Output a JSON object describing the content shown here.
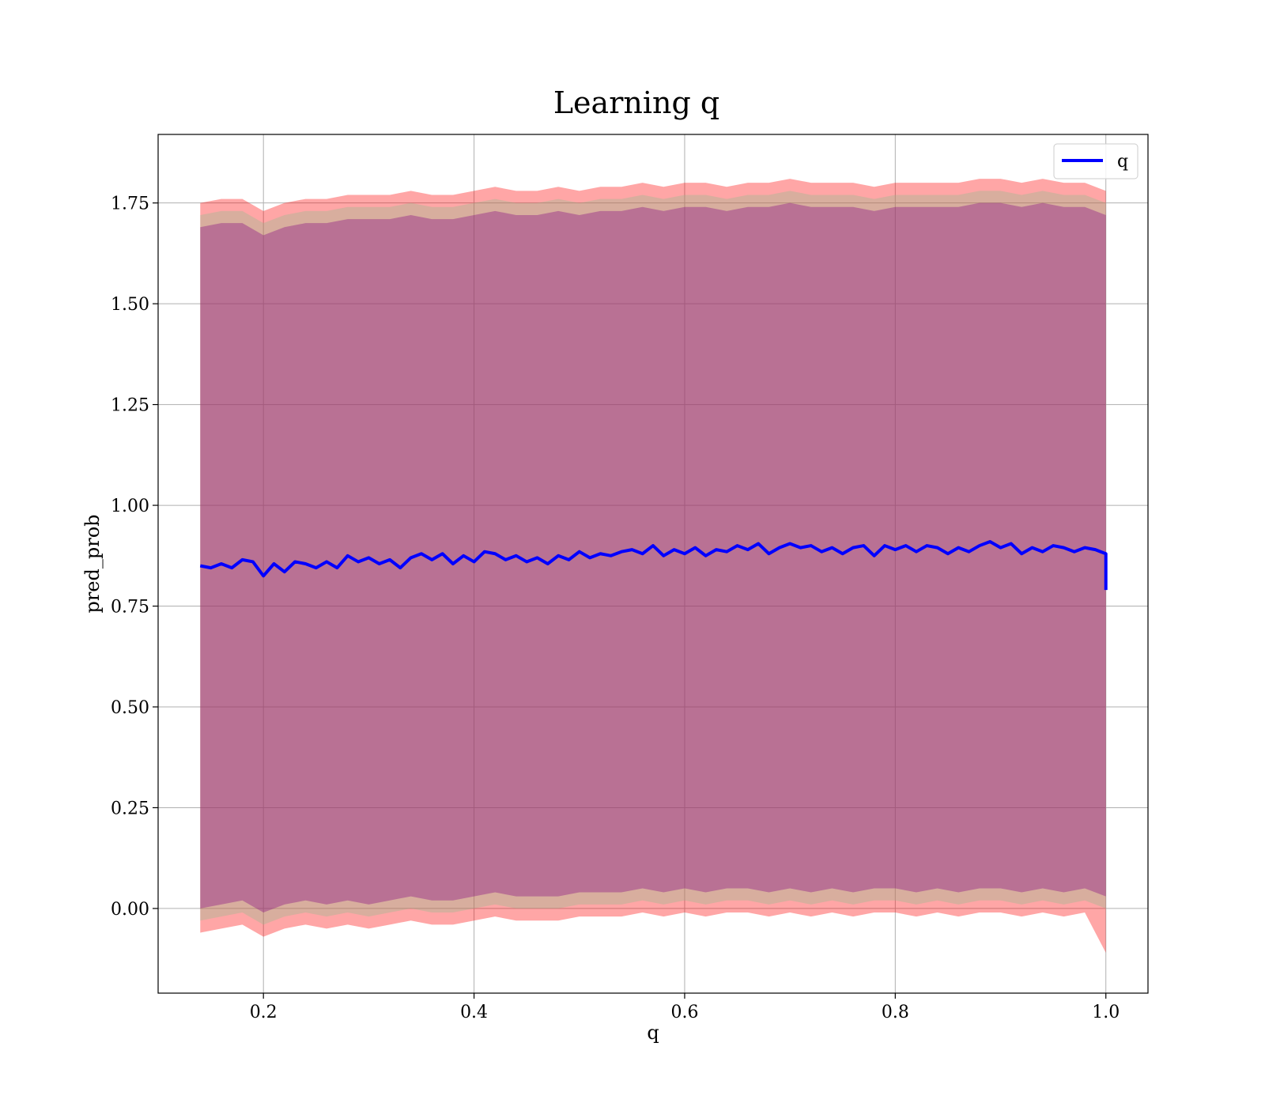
{
  "chart_data": {
    "type": "line",
    "title": "Learning q",
    "xlabel": "q",
    "ylabel": "pred_prob",
    "xlim": [
      0.1,
      1.04
    ],
    "ylim": [
      -0.21,
      1.92
    ],
    "xticks": [
      {
        "value": 0.2,
        "label": "0.2"
      },
      {
        "value": 0.4,
        "label": "0.4"
      },
      {
        "value": 0.6,
        "label": "0.6"
      },
      {
        "value": 0.8,
        "label": "0.8"
      },
      {
        "value": 1.0,
        "label": "1.0"
      }
    ],
    "yticks": [
      {
        "value": 0.0,
        "label": "0.00"
      },
      {
        "value": 0.25,
        "label": "0.25"
      },
      {
        "value": 0.5,
        "label": "0.50"
      },
      {
        "value": 0.75,
        "label": "0.75"
      },
      {
        "value": 1.0,
        "label": "1.00"
      },
      {
        "value": 1.25,
        "label": "1.25"
      },
      {
        "value": 1.5,
        "label": "1.50"
      },
      {
        "value": 1.75,
        "label": "1.75"
      }
    ],
    "grid": true,
    "legend": {
      "position": "top-right"
    },
    "series": [
      {
        "name": "q",
        "color": "#0000ff",
        "x": [
          0.14,
          0.15,
          0.16,
          0.17,
          0.18,
          0.19,
          0.2,
          0.21,
          0.22,
          0.23,
          0.24,
          0.25,
          0.26,
          0.27,
          0.28,
          0.29,
          0.3,
          0.31,
          0.32,
          0.33,
          0.34,
          0.35,
          0.36,
          0.37,
          0.38,
          0.39,
          0.4,
          0.41,
          0.42,
          0.43,
          0.44,
          0.45,
          0.46,
          0.47,
          0.48,
          0.49,
          0.5,
          0.51,
          0.52,
          0.53,
          0.54,
          0.55,
          0.56,
          0.57,
          0.58,
          0.59,
          0.6,
          0.61,
          0.62,
          0.63,
          0.64,
          0.65,
          0.66,
          0.67,
          0.68,
          0.69,
          0.7,
          0.71,
          0.72,
          0.73,
          0.74,
          0.75,
          0.76,
          0.77,
          0.78,
          0.79,
          0.8,
          0.81,
          0.82,
          0.83,
          0.84,
          0.85,
          0.86,
          0.87,
          0.88,
          0.89,
          0.9,
          0.91,
          0.92,
          0.93,
          0.94,
          0.95,
          0.96,
          0.97,
          0.98,
          0.99,
          0.995,
          1.0,
          1.0
        ],
        "y": [
          0.85,
          0.845,
          0.855,
          0.845,
          0.865,
          0.86,
          0.825,
          0.855,
          0.835,
          0.86,
          0.855,
          0.845,
          0.86,
          0.845,
          0.875,
          0.86,
          0.87,
          0.855,
          0.865,
          0.845,
          0.87,
          0.88,
          0.865,
          0.88,
          0.855,
          0.875,
          0.86,
          0.885,
          0.88,
          0.865,
          0.875,
          0.86,
          0.87,
          0.855,
          0.875,
          0.865,
          0.885,
          0.87,
          0.88,
          0.875,
          0.885,
          0.89,
          0.88,
          0.9,
          0.875,
          0.89,
          0.88,
          0.895,
          0.875,
          0.89,
          0.885,
          0.9,
          0.89,
          0.905,
          0.88,
          0.895,
          0.905,
          0.895,
          0.9,
          0.885,
          0.895,
          0.88,
          0.895,
          0.9,
          0.875,
          0.9,
          0.89,
          0.9,
          0.885,
          0.9,
          0.895,
          0.88,
          0.895,
          0.885,
          0.9,
          0.91,
          0.895,
          0.905,
          0.88,
          0.895,
          0.885,
          0.9,
          0.895,
          0.885,
          0.895,
          0.89,
          0.885,
          0.88,
          0.79
        ]
      }
    ],
    "bands": [
      {
        "color": "#ff0000",
        "opacity": 0.35,
        "x": [
          0.14,
          0.16,
          0.18,
          0.2,
          0.22,
          0.24,
          0.26,
          0.28,
          0.3,
          0.32,
          0.34,
          0.36,
          0.38,
          0.4,
          0.42,
          0.44,
          0.46,
          0.48,
          0.5,
          0.52,
          0.54,
          0.56,
          0.58,
          0.6,
          0.62,
          0.64,
          0.66,
          0.68,
          0.7,
          0.72,
          0.74,
          0.76,
          0.78,
          0.8,
          0.82,
          0.84,
          0.86,
          0.88,
          0.9,
          0.92,
          0.94,
          0.96,
          0.98,
          1.0
        ],
        "lower": [
          -0.06,
          -0.05,
          -0.04,
          -0.07,
          -0.05,
          -0.04,
          -0.05,
          -0.04,
          -0.05,
          -0.04,
          -0.03,
          -0.04,
          -0.04,
          -0.03,
          -0.02,
          -0.03,
          -0.03,
          -0.03,
          -0.02,
          -0.02,
          -0.02,
          -0.01,
          -0.02,
          -0.01,
          -0.02,
          -0.01,
          -0.01,
          -0.02,
          -0.01,
          -0.02,
          -0.01,
          -0.02,
          -0.01,
          -0.01,
          -0.02,
          -0.01,
          -0.02,
          -0.01,
          -0.01,
          -0.02,
          -0.01,
          -0.02,
          -0.01,
          -0.11
        ],
        "upper": [
          1.75,
          1.76,
          1.76,
          1.73,
          1.75,
          1.76,
          1.76,
          1.77,
          1.77,
          1.77,
          1.78,
          1.77,
          1.77,
          1.78,
          1.79,
          1.78,
          1.78,
          1.79,
          1.78,
          1.79,
          1.79,
          1.8,
          1.79,
          1.8,
          1.8,
          1.79,
          1.8,
          1.8,
          1.81,
          1.8,
          1.8,
          1.8,
          1.79,
          1.8,
          1.8,
          1.8,
          1.8,
          1.81,
          1.81,
          1.8,
          1.81,
          1.8,
          1.8,
          1.78
        ]
      },
      {
        "color": "#8fbc8f",
        "opacity": 0.35,
        "x": [
          0.14,
          0.16,
          0.18,
          0.2,
          0.22,
          0.24,
          0.26,
          0.28,
          0.3,
          0.32,
          0.34,
          0.36,
          0.38,
          0.4,
          0.42,
          0.44,
          0.46,
          0.48,
          0.5,
          0.52,
          0.54,
          0.56,
          0.58,
          0.6,
          0.62,
          0.64,
          0.66,
          0.68,
          0.7,
          0.72,
          0.74,
          0.76,
          0.78,
          0.8,
          0.82,
          0.84,
          0.86,
          0.88,
          0.9,
          0.92,
          0.94,
          0.96,
          0.98,
          1.0
        ],
        "lower": [
          -0.03,
          -0.02,
          -0.01,
          -0.04,
          -0.02,
          -0.01,
          -0.02,
          -0.01,
          -0.02,
          -0.01,
          0.0,
          -0.01,
          -0.01,
          0.0,
          0.01,
          0.0,
          0.0,
          0.0,
          0.01,
          0.01,
          0.01,
          0.02,
          0.01,
          0.02,
          0.01,
          0.02,
          0.02,
          0.01,
          0.02,
          0.01,
          0.02,
          0.01,
          0.02,
          0.02,
          0.01,
          0.02,
          0.01,
          0.02,
          0.02,
          0.01,
          0.02,
          0.01,
          0.02,
          0.0
        ],
        "upper": [
          1.72,
          1.73,
          1.73,
          1.7,
          1.72,
          1.73,
          1.73,
          1.74,
          1.74,
          1.74,
          1.75,
          1.74,
          1.74,
          1.75,
          1.76,
          1.75,
          1.75,
          1.76,
          1.75,
          1.76,
          1.76,
          1.77,
          1.76,
          1.77,
          1.77,
          1.76,
          1.77,
          1.77,
          1.78,
          1.77,
          1.77,
          1.77,
          1.76,
          1.77,
          1.77,
          1.77,
          1.77,
          1.78,
          1.78,
          1.77,
          1.78,
          1.77,
          1.77,
          1.75
        ]
      },
      {
        "color": "#800080",
        "opacity": 0.35,
        "x": [
          0.14,
          0.16,
          0.18,
          0.2,
          0.22,
          0.24,
          0.26,
          0.28,
          0.3,
          0.32,
          0.34,
          0.36,
          0.38,
          0.4,
          0.42,
          0.44,
          0.46,
          0.48,
          0.5,
          0.52,
          0.54,
          0.56,
          0.58,
          0.6,
          0.62,
          0.64,
          0.66,
          0.68,
          0.7,
          0.72,
          0.74,
          0.76,
          0.78,
          0.8,
          0.82,
          0.84,
          0.86,
          0.88,
          0.9,
          0.92,
          0.94,
          0.96,
          0.98,
          1.0
        ],
        "lower": [
          0.0,
          0.01,
          0.02,
          -0.01,
          0.01,
          0.02,
          0.01,
          0.02,
          0.01,
          0.02,
          0.03,
          0.02,
          0.02,
          0.03,
          0.04,
          0.03,
          0.03,
          0.03,
          0.04,
          0.04,
          0.04,
          0.05,
          0.04,
          0.05,
          0.04,
          0.05,
          0.05,
          0.04,
          0.05,
          0.04,
          0.05,
          0.04,
          0.05,
          0.05,
          0.04,
          0.05,
          0.04,
          0.05,
          0.05,
          0.04,
          0.05,
          0.04,
          0.05,
          0.03
        ],
        "upper": [
          1.69,
          1.7,
          1.7,
          1.67,
          1.69,
          1.7,
          1.7,
          1.71,
          1.71,
          1.71,
          1.72,
          1.71,
          1.71,
          1.72,
          1.73,
          1.72,
          1.72,
          1.73,
          1.72,
          1.73,
          1.73,
          1.74,
          1.73,
          1.74,
          1.74,
          1.73,
          1.74,
          1.74,
          1.75,
          1.74,
          1.74,
          1.74,
          1.73,
          1.74,
          1.74,
          1.74,
          1.74,
          1.75,
          1.75,
          1.74,
          1.75,
          1.74,
          1.74,
          1.72
        ]
      }
    ]
  }
}
